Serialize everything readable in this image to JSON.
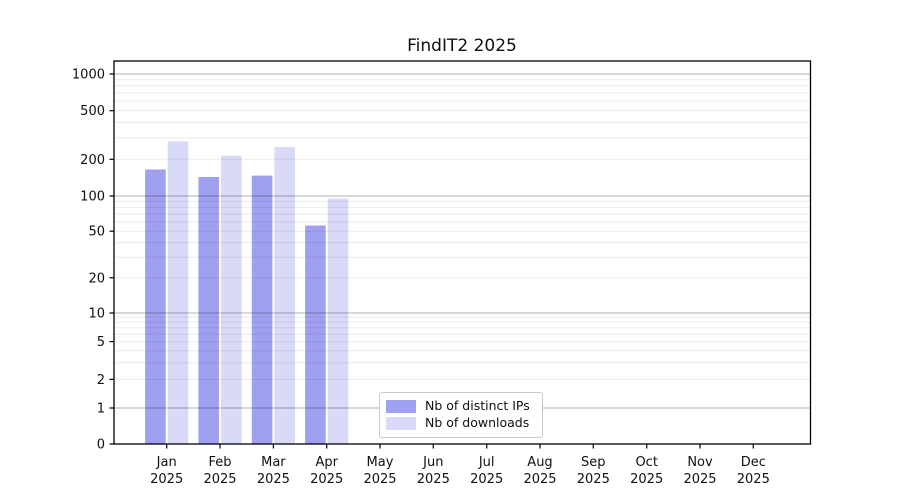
{
  "chart_data": {
    "type": "bar",
    "title": "FindIT2 2025",
    "year_label": "2025",
    "categories": [
      "Jan",
      "Feb",
      "Mar",
      "Apr",
      "May",
      "Jun",
      "Jul",
      "Aug",
      "Sep",
      "Oct",
      "Nov",
      "Dec"
    ],
    "series": [
      {
        "name": "Nb of distinct IPs",
        "color": "#a0a0f0",
        "values": [
          165,
          143,
          147,
          56,
          0,
          0,
          0,
          0,
          0,
          0,
          0,
          0
        ]
      },
      {
        "name": "Nb of downloads",
        "color": "#d9d9f8",
        "values": [
          281,
          214,
          252,
          95,
          0,
          0,
          0,
          0,
          0,
          0,
          0,
          0
        ]
      }
    ],
    "yscale": "symlog",
    "yticks": [
      0,
      1,
      2,
      5,
      10,
      20,
      50,
      100,
      200,
      500,
      1000
    ],
    "ylim": [
      0,
      1300
    ],
    "xlabel": "",
    "ylabel": "",
    "grid": "horizontal, major and minor log lines, drawn over bars",
    "legend_position": "lower center inside axes",
    "colors": {
      "major_grid": "rgba(0,0,0,0.30)",
      "minor_grid": "rgba(0,0,0,0.08)",
      "spine": "#000000",
      "text": "#111111",
      "background": "#ffffff"
    }
  }
}
